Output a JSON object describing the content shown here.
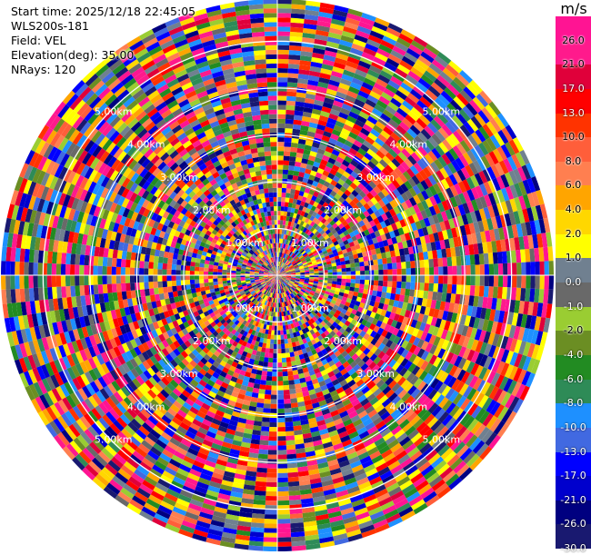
{
  "info": {
    "start_time": "Start time: 2025/12/18 22:45:05",
    "instrument": "WLS200s-181",
    "field": "Field: VEL",
    "elevation": "Elevation(deg): 35.00",
    "nrays": "NRays: 120"
  },
  "colorbar": {
    "unit": "m/s",
    "ticks": [
      "26.0",
      "21.0",
      "17.0",
      "13.0",
      "10.0",
      "8.0",
      "6.0",
      "4.0",
      "2.0",
      "1.0",
      "0.0",
      "-1.0",
      "-2.0",
      "-4.0",
      "-6.0",
      "-8.0",
      "-10.0",
      "-13.0",
      "-17.0",
      "-21.0",
      "-26.0",
      "-30.0"
    ],
    "colors": [
      "#ff1493",
      "#ff1a8c",
      "#e0003a",
      "#ff0000",
      "#ff3300",
      "#ff5e3a",
      "#ff7f50",
      "#ffa500",
      "#ffd700",
      "#ffff00",
      "#708090",
      "#696969",
      "#9acd32",
      "#6b8e23",
      "#228b22",
      "#2e8b57",
      "#1e90ff",
      "#4169e1",
      "#0000ff",
      "#0000cd",
      "#000080",
      "#191970"
    ]
  },
  "chart_data": {
    "type": "heatmap",
    "projection": "polar-ppi",
    "field": "VEL",
    "nrays": 120,
    "range_rings_km": [
      1.0,
      2.0,
      3.0,
      4.0,
      5.0
    ],
    "ring_labels": [
      "1.00km",
      "2.00km",
      "3.00km",
      "4.00km",
      "5.00km"
    ],
    "max_range_km": 5.9,
    "value_range": [
      -30.0,
      26.0
    ],
    "gates": 60,
    "grid": true
  }
}
